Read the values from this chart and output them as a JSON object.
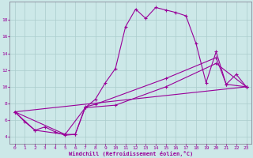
{
  "xlabel": "Windchill (Refroidissement éolien,°C)",
  "background_color": "#cce8e8",
  "line_color": "#990099",
  "grid_color": "#aacccc",
  "xlim": [
    -0.5,
    23.5
  ],
  "ylim": [
    3.2,
    20.2
  ],
  "xticks": [
    0,
    1,
    2,
    3,
    4,
    5,
    6,
    7,
    8,
    9,
    10,
    11,
    12,
    13,
    14,
    15,
    16,
    17,
    18,
    19,
    20,
    21,
    22,
    23
  ],
  "yticks": [
    4,
    6,
    8,
    10,
    12,
    14,
    16,
    18
  ],
  "series1": [
    [
      0,
      7.0
    ],
    [
      1,
      5.8
    ],
    [
      2,
      4.8
    ],
    [
      3,
      5.2
    ],
    [
      4,
      4.6
    ],
    [
      5,
      4.2
    ],
    [
      6,
      4.3
    ],
    [
      7,
      7.5
    ],
    [
      8,
      8.5
    ],
    [
      9,
      10.5
    ],
    [
      10,
      12.2
    ],
    [
      11,
      17.2
    ],
    [
      12,
      19.3
    ],
    [
      13,
      18.2
    ],
    [
      14,
      19.5
    ],
    [
      15,
      19.2
    ],
    [
      16,
      18.9
    ],
    [
      17,
      18.5
    ],
    [
      18,
      15.2
    ],
    [
      19,
      10.5
    ],
    [
      20,
      14.2
    ],
    [
      21,
      10.3
    ],
    [
      22,
      11.5
    ],
    [
      23,
      10.0
    ]
  ],
  "series2": [
    [
      0,
      7.0
    ],
    [
      2,
      4.8
    ],
    [
      5,
      4.3
    ],
    [
      6,
      4.3
    ],
    [
      7,
      7.6
    ],
    [
      8,
      7.9
    ],
    [
      15,
      11.0
    ],
    [
      20,
      13.5
    ],
    [
      21,
      10.3
    ],
    [
      23,
      10.0
    ]
  ],
  "series3": [
    [
      0,
      7.0
    ],
    [
      5,
      4.3
    ],
    [
      7,
      7.5
    ],
    [
      10,
      7.8
    ],
    [
      15,
      10.0
    ],
    [
      20,
      12.8
    ],
    [
      23,
      10.0
    ]
  ],
  "series4": [
    [
      0,
      7.0
    ],
    [
      23,
      10.0
    ]
  ]
}
